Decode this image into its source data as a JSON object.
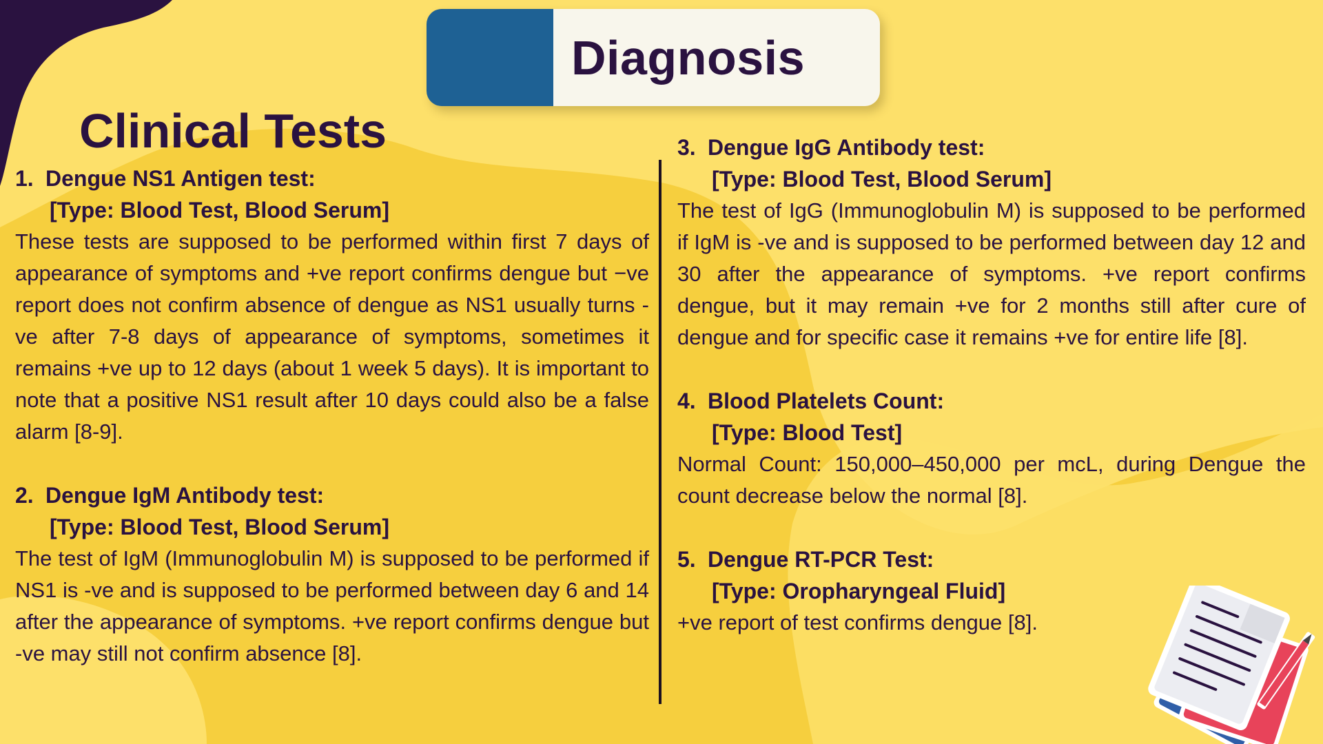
{
  "title": "Diagnosis",
  "section_heading": "Clinical Tests",
  "colors": {
    "background": "#f6cf3e",
    "dark_purple": "#2a1240",
    "banner_blue": "#1e6194",
    "banner_cream": "#f8f6ec"
  },
  "left_tests": [
    {
      "number": "1.",
      "name": "Dengue NS1 Antigen test:",
      "type": "[Type: Blood Test, Blood Serum]",
      "description": "These tests are supposed to be performed within first 7 days of appearance of symptoms and +ve report confirms dengue but −ve report does not confirm absence of dengue as NS1 usually turns -ve after 7-8 days of appearance of symptoms, sometimes it remains +ve up to 12 days (about 1 week 5 days). It is important to note that a positive NS1 result after 10 days could also be a false alarm [8-9]."
    },
    {
      "number": "2.",
      "name": "Dengue IgM Antibody test:",
      "type": "[Type: Blood Test, Blood Serum]",
      "description": "The test of IgM (Immunoglobulin M) is supposed to be performed if NS1 is -ve and is supposed to be performed between day 6 and 14 after the appearance of symptoms. +ve report confirms dengue but -ve may still not confirm absence [8]."
    }
  ],
  "right_tests": [
    {
      "number": "3.",
      "name": "Dengue IgG Antibody test:",
      "type": "[Type: Blood Test, Blood Serum]",
      "description": "The test of IgG (Immunoglobulin M) is supposed to be performed if IgM is -ve and is supposed to be performed between day 12 and 30 after the appearance of symptoms. +ve report confirms dengue, but it may remain +ve for 2 months still after cure of dengue and for specific case it remains +ve for entire life [8]."
    },
    {
      "number": "4.",
      "name": "Blood Platelets Count:",
      "type": "[Type: Blood Test]",
      "description": "Normal Count: 150,000–450,000 per mcL, during Dengue the count decrease below the normal [8]."
    },
    {
      "number": "5.",
      "name": "Dengue RT-PCR Test:",
      "type": "[Type: Oropharyngeal Fluid]",
      "description": "+ve report of test confirms dengue [8]."
    }
  ],
  "illustration": {
    "icon": "documents-and-pencil-icon"
  }
}
